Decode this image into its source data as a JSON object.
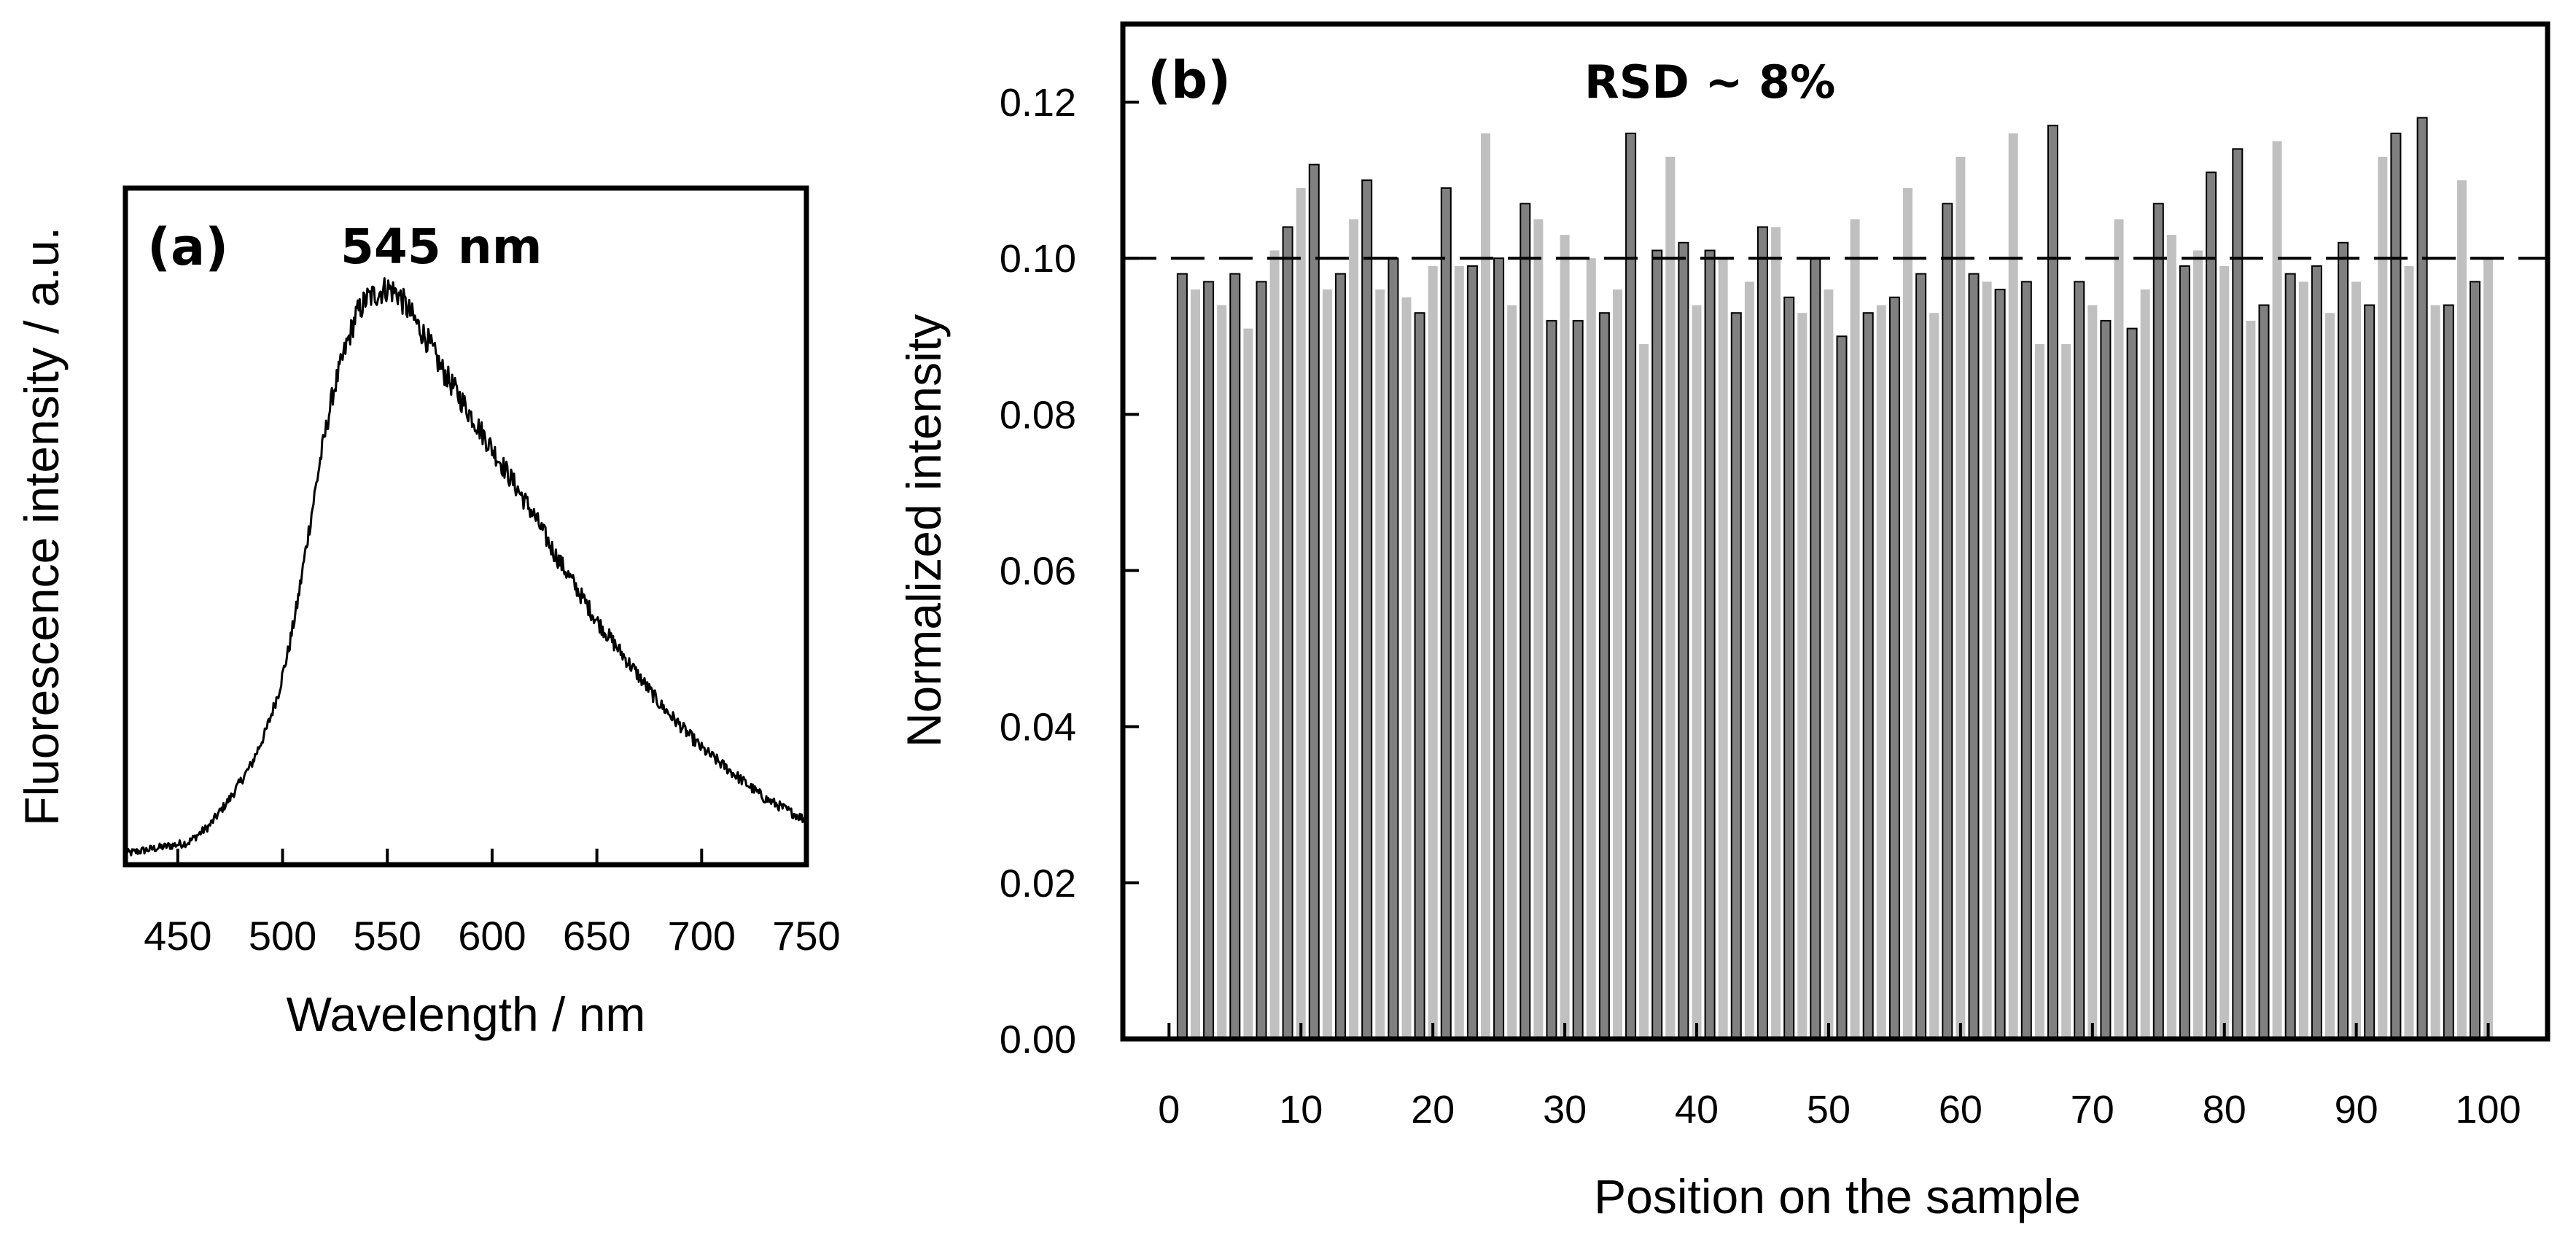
{
  "chart_data": [
    {
      "panel_label": "(a)",
      "type": "line",
      "annotation": "545 nm",
      "xlabel": "Wavelength / nm",
      "ylabel": "Fluorescence intensity / a.u.",
      "xlim": [
        425,
        750
      ],
      "ylim": [
        0,
        1.22
      ],
      "x_ticks": [
        450,
        500,
        550,
        600,
        650,
        700,
        750
      ],
      "x_tick_labels": [
        "450",
        "500",
        "550",
        "600",
        "650",
        "700",
        "750"
      ],
      "y_ticks_shown": false,
      "series": [
        {
          "name": "fluorescence",
          "x": [
            425,
            440,
            455,
            465,
            475,
            485,
            492,
            498,
            503,
            507,
            512,
            518,
            524,
            530,
            535,
            540,
            545,
            550,
            555,
            560,
            565,
            570,
            575,
            580,
            590,
            600,
            610,
            620,
            630,
            640,
            650,
            660,
            670,
            680,
            690,
            700,
            710,
            720,
            730,
            740,
            750
          ],
          "y": [
            0.02,
            0.03,
            0.04,
            0.07,
            0.12,
            0.18,
            0.24,
            0.31,
            0.39,
            0.47,
            0.59,
            0.73,
            0.85,
            0.93,
            0.99,
            1.02,
            1.03,
            1.04,
            1.03,
            1.0,
            0.97,
            0.94,
            0.9,
            0.87,
            0.81,
            0.75,
            0.69,
            0.63,
            0.56,
            0.5,
            0.44,
            0.39,
            0.34,
            0.29,
            0.25,
            0.21,
            0.18,
            0.15,
            0.12,
            0.1,
            0.08
          ]
        }
      ]
    },
    {
      "panel_label": "(b)",
      "type": "bar",
      "annotation": "RSD ~ 8%",
      "xlabel": "Position on the sample",
      "ylabel": "Normalized intensity",
      "xlim": [
        -3.5,
        104.5
      ],
      "ylim": [
        0,
        0.13
      ],
      "x_ticks": [
        0,
        10,
        20,
        30,
        40,
        50,
        60,
        70,
        80,
        90,
        100
      ],
      "x_tick_labels": [
        "0",
        "10",
        "20",
        "30",
        "40",
        "50",
        "60",
        "70",
        "80",
        "90",
        "100"
      ],
      "y_ticks": [
        0.0,
        0.02,
        0.04,
        0.06,
        0.08,
        0.1,
        0.12
      ],
      "y_tick_labels": [
        "0.00",
        "0.02",
        "0.04",
        "0.06",
        "0.08",
        "0.10",
        "0.12"
      ],
      "reference_line": 0.1,
      "series": [
        {
          "name": "positions",
          "colors": [
            "#808080",
            "#c0c0c0"
          ],
          "values": [
            0.098,
            0.096,
            0.097,
            0.094,
            0.098,
            0.091,
            0.097,
            0.101,
            0.104,
            0.109,
            0.112,
            0.096,
            0.098,
            0.105,
            0.11,
            0.096,
            0.1,
            0.095,
            0.093,
            0.099,
            0.109,
            0.099,
            0.099,
            0.116,
            0.1,
            0.094,
            0.107,
            0.105,
            0.092,
            0.103,
            0.092,
            0.1,
            0.093,
            0.096,
            0.116,
            0.089,
            0.101,
            0.113,
            0.102,
            0.094,
            0.101,
            0.1,
            0.093,
            0.097,
            0.104,
            0.104,
            0.095,
            0.093,
            0.1,
            0.096,
            0.09,
            0.105,
            0.093,
            0.094,
            0.095,
            0.109,
            0.098,
            0.093,
            0.107,
            0.113,
            0.098,
            0.097,
            0.096,
            0.116,
            0.097,
            0.089,
            0.117,
            0.089,
            0.097,
            0.094,
            0.092,
            0.105,
            0.091,
            0.096,
            0.107,
            0.103,
            0.099,
            0.101,
            0.111,
            0.099,
            0.114,
            0.092,
            0.094,
            0.115,
            0.098,
            0.097,
            0.099,
            0.093,
            0.102,
            0.097,
            0.094,
            0.113,
            0.116,
            0.099,
            0.118,
            0.094,
            0.094,
            0.11,
            0.097,
            0.1
          ]
        }
      ]
    }
  ]
}
